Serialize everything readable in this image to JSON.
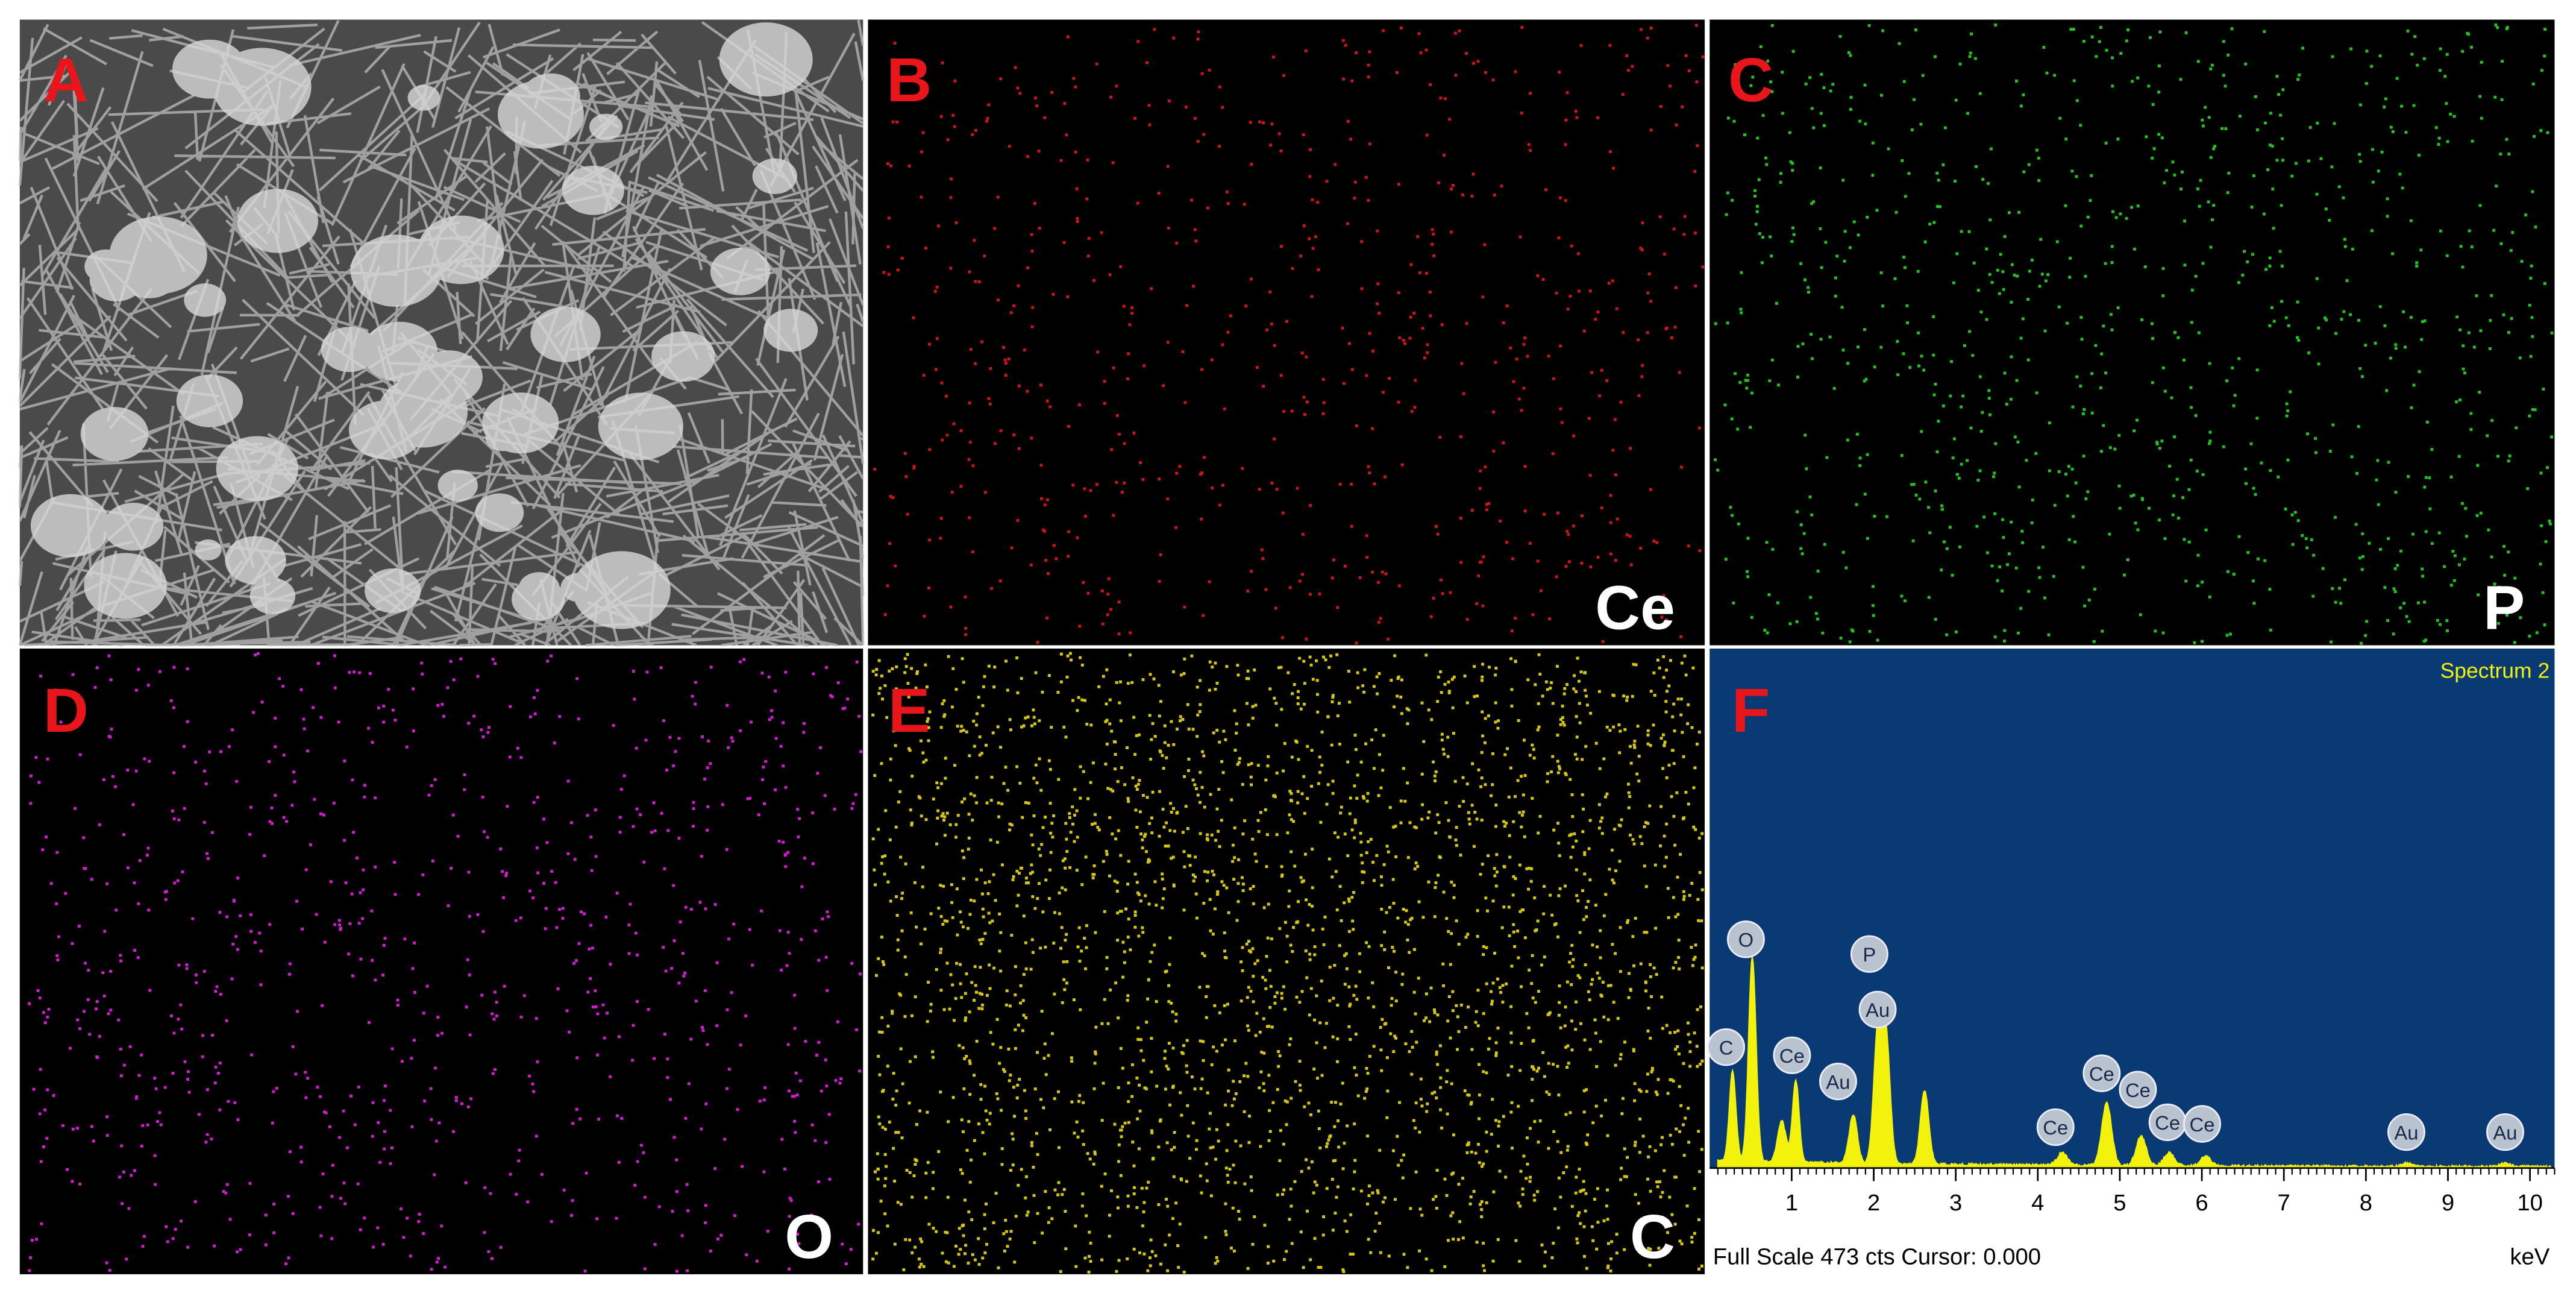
{
  "panels": [
    {
      "letter": "A"
    },
    {
      "letter": "B",
      "element": "Ce"
    },
    {
      "letter": "C",
      "element": "P"
    },
    {
      "letter": "D",
      "element": "O"
    },
    {
      "letter": "E",
      "element": "C"
    },
    {
      "letter": "F"
    }
  ],
  "spectrum": {
    "title": "Spectrum 2",
    "peak_labels": [
      "C",
      "O",
      "Ce",
      "Au",
      "P",
      "Au",
      "Ce",
      "Ce",
      "Ce",
      "Ce",
      "Ce",
      "Au",
      "Au"
    ],
    "xlim": [
      0,
      10.3
    ],
    "xticks": [
      1,
      2,
      3,
      4,
      5,
      6,
      7,
      8,
      9,
      10
    ],
    "unit": "keV",
    "footer": "Full Scale 473 cts Cursor: 0.000"
  }
}
